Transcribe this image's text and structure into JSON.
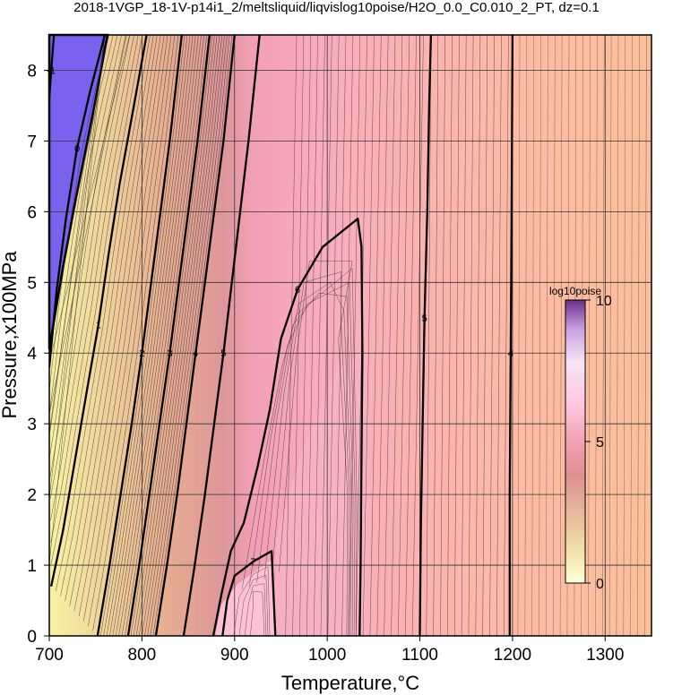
{
  "chart_data": {
    "type": "contour",
    "title": "2018-1VGP_18-1V-p14i1_2/meltsliquid/liqvislog10poise/H2O_0.0_C0.010_2_PT, dz=0.1",
    "xlabel": "Temperature,°C",
    "ylabel": "Pressure,x100MPa",
    "xlim": [
      700,
      1350
    ],
    "ylim": [
      0,
      8.5
    ],
    "x_ticks": [
      "700",
      "800",
      "900",
      "1000",
      "1100",
      "1200",
      "1300"
    ],
    "y_ticks": [
      "0",
      "1",
      "2",
      "3",
      "4",
      "5",
      "6",
      "7",
      "8"
    ],
    "x_tick_values": [
      700,
      800,
      900,
      1000,
      1100,
      1200,
      1300
    ],
    "y_tick_values": [
      0,
      1,
      2,
      3,
      4,
      5,
      6,
      7,
      8
    ],
    "grid": true,
    "contour_interval": 0.1,
    "major_contours": [
      {
        "level": "-1",
        "points": [
          [
            700,
            7.6
          ],
          [
            702,
            8.0
          ],
          [
            705,
            8.5
          ]
        ]
      },
      {
        "level": "0",
        "points": [
          [
            700,
            3.8
          ],
          [
            708,
            4.9
          ],
          [
            718,
            5.9
          ],
          [
            730,
            6.9
          ],
          [
            744,
            7.7
          ],
          [
            760,
            8.5
          ]
        ]
      },
      {
        "level": "1",
        "points": [
          [
            702,
            0.7
          ],
          [
            715,
            1.5
          ],
          [
            728,
            2.5
          ],
          [
            741,
            3.5
          ],
          [
            753,
            4.4
          ],
          [
            764,
            5.4
          ],
          [
            776,
            6.4
          ],
          [
            790,
            7.4
          ],
          [
            805,
            8.5
          ]
        ]
      },
      {
        "level": "2",
        "points": [
          [
            752,
            0
          ],
          [
            765,
            1.0
          ],
          [
            777,
            2.0
          ],
          [
            789,
            3.0
          ],
          [
            800,
            4.0
          ],
          [
            810,
            5.0
          ],
          [
            820,
            6.0
          ],
          [
            830,
            7.0
          ],
          [
            843,
            8.5
          ]
        ]
      },
      {
        "level": "3",
        "points": [
          [
            785,
            0
          ],
          [
            797,
            1.0
          ],
          [
            808,
            2.0
          ],
          [
            819,
            3.0
          ],
          [
            830,
            4.0
          ],
          [
            840,
            5.0
          ],
          [
            850,
            6.0
          ],
          [
            860,
            7.0
          ],
          [
            873,
            8.5
          ]
        ]
      },
      {
        "level": "4",
        "points": [
          [
            815,
            0
          ],
          [
            827,
            1.0
          ],
          [
            838,
            2.0
          ],
          [
            848,
            3.0
          ],
          [
            858,
            4.0
          ],
          [
            868,
            5.0
          ],
          [
            878,
            6.0
          ],
          [
            888,
            7.0
          ],
          [
            900,
            8.5
          ]
        ]
      },
      {
        "level": "5",
        "points": [
          [
            845,
            0
          ],
          [
            857,
            1.0
          ],
          [
            868,
            2.0
          ],
          [
            878,
            3.0
          ],
          [
            888,
            4.0
          ],
          [
            897,
            5.0
          ],
          [
            906,
            6.0
          ],
          [
            915,
            7.0
          ],
          [
            927,
            8.5
          ]
        ]
      },
      {
        "level": "6",
        "points": [
          [
            877,
            0
          ],
          [
            886,
            0.6
          ],
          [
            896,
            1.2
          ],
          [
            910,
            1.6
          ],
          [
            925,
            2.4
          ],
          [
            938,
            3.2
          ],
          [
            950,
            4.2
          ],
          [
            968,
            4.9
          ],
          [
            995,
            5.5
          ],
          [
            1033,
            5.9
          ],
          [
            1037,
            5.5
          ],
          [
            1038,
            4.0
          ],
          [
            1037,
            2.5
          ],
          [
            1036,
            1.0
          ],
          [
            1035,
            0
          ]
        ]
      },
      {
        "level": "7",
        "points": [
          [
            887,
            0
          ],
          [
            892,
            0.5
          ],
          [
            900,
            0.85
          ],
          [
            920,
            1.05
          ],
          [
            940,
            1.2
          ],
          [
            942,
            0.6
          ],
          [
            944,
            0
          ]
        ]
      },
      {
        "level": "5",
        "points": [
          [
            1100,
            0
          ],
          [
            1101,
            1.5
          ],
          [
            1103,
            3.0
          ],
          [
            1105,
            4.5
          ],
          [
            1108,
            6.0
          ],
          [
            1110,
            7.5
          ],
          [
            1112,
            8.5
          ]
        ]
      },
      {
        "level": "4",
        "points": [
          [
            1197,
            0
          ],
          [
            1197,
            2.0
          ],
          [
            1198,
            4.0
          ],
          [
            1199,
            6.0
          ],
          [
            1200,
            8.5
          ]
        ]
      }
    ],
    "colorbar": {
      "label": "log10poise",
      "ticks": [
        "0",
        "5",
        "10"
      ],
      "range": [
        0,
        10
      ],
      "colors": [
        "#ffffd8",
        "#f0e0a8",
        "#e6b89a",
        "#dd9090",
        "#f2a0b4",
        "#ffc8de",
        "#f4e4f4",
        "#c89ee0",
        "#6a2e8a"
      ]
    }
  }
}
